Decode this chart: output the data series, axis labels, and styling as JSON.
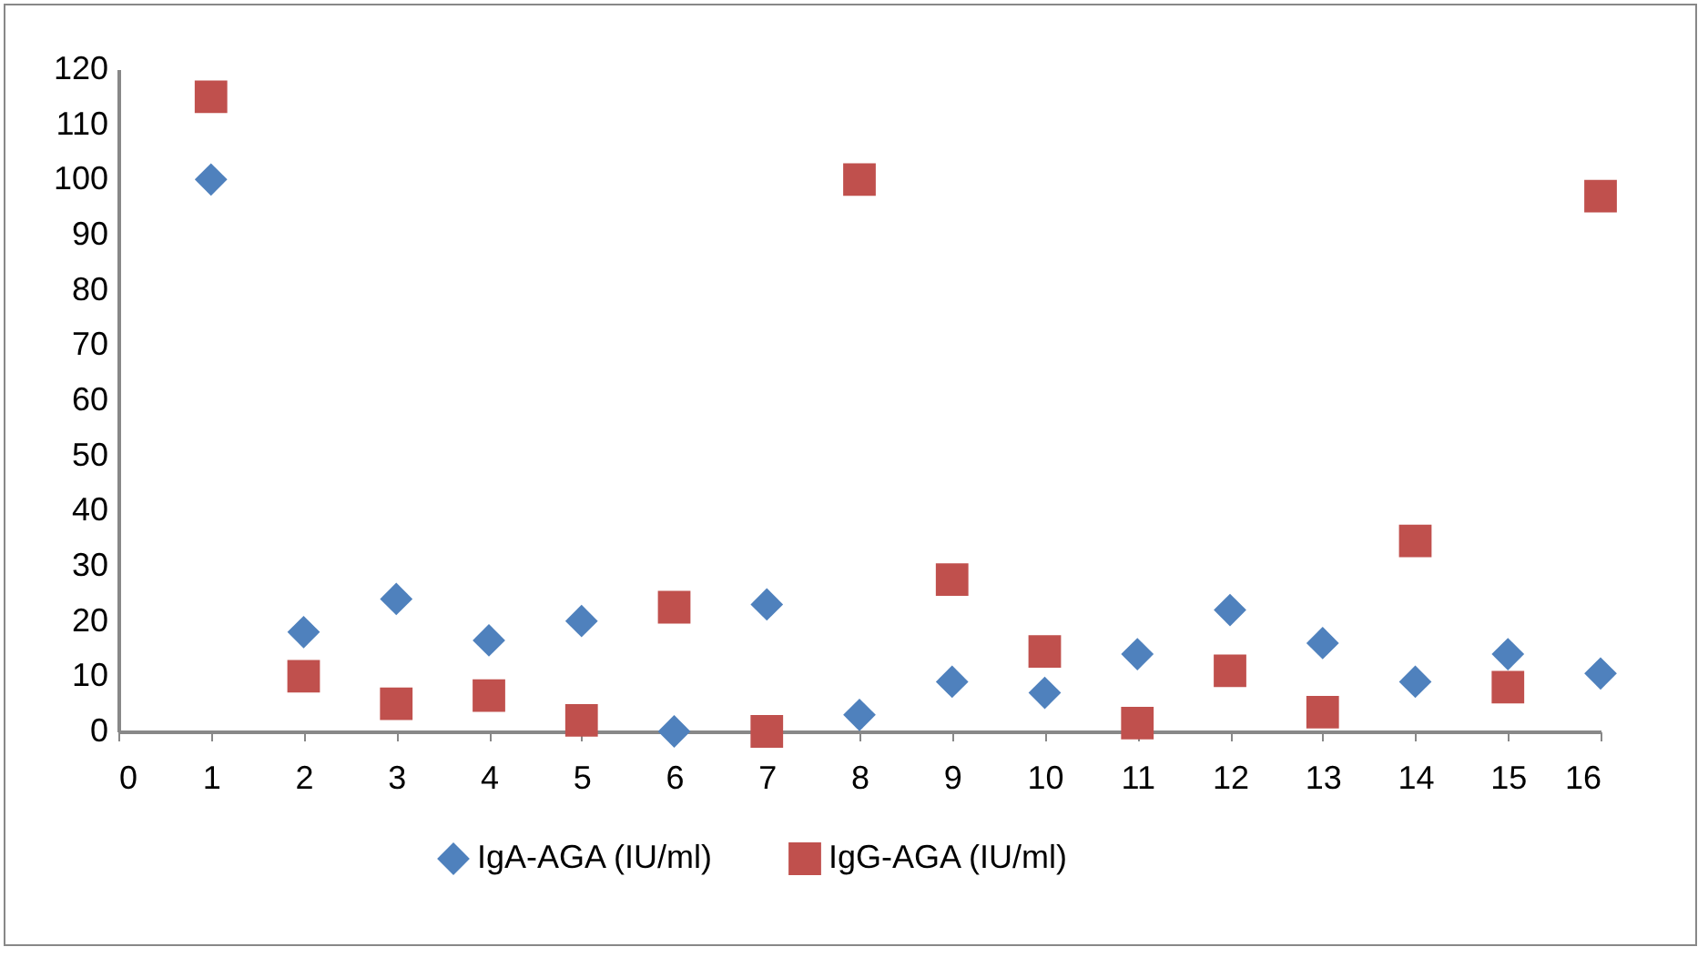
{
  "chart_data": {
    "type": "scatter",
    "x": [
      1,
      2,
      3,
      4,
      5,
      6,
      7,
      8,
      9,
      10,
      11,
      12,
      13,
      14,
      15,
      16
    ],
    "series": [
      {
        "name": "IgA-AGA (IU/ml)",
        "color": "#4f81bd",
        "marker": "diamond",
        "values": [
          100,
          18,
          24,
          16.5,
          20,
          0,
          23,
          3,
          9,
          7,
          14,
          22,
          16,
          9,
          14,
          10.5
        ]
      },
      {
        "name": "IgG-AGA (IU/ml)",
        "color": "#c0504d",
        "marker": "square",
        "values": [
          115,
          10,
          5,
          6.5,
          2,
          22.5,
          0,
          100,
          27.5,
          14.5,
          1.5,
          11,
          3.5,
          34.5,
          8,
          97
        ]
      }
    ],
    "xlim": [
      0,
      16
    ],
    "xticks": [
      0,
      1,
      2,
      3,
      4,
      5,
      6,
      7,
      8,
      9,
      10,
      11,
      12,
      13,
      14,
      15,
      16
    ],
    "ylim": [
      0,
      120
    ],
    "yticks": [
      0,
      10,
      20,
      30,
      40,
      50,
      60,
      70,
      80,
      90,
      100,
      110,
      120
    ],
    "grid": false,
    "legend": "bottom"
  }
}
